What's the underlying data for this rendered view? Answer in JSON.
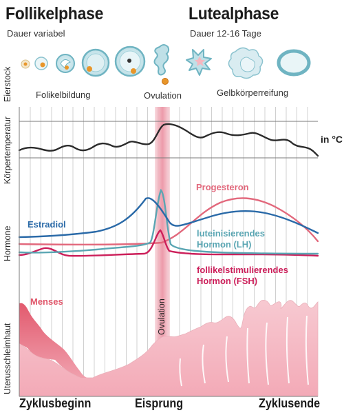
{
  "header": {
    "follicular": {
      "title": "Follikelphase",
      "duration": "Dauer variabel"
    },
    "luteal": {
      "title": "Lutealphase",
      "duration": "Dauer 12-16 Tage"
    }
  },
  "rows": {
    "ovary": "Eierstock",
    "temperature": "Körpertemperatur",
    "hormones": "Hormone",
    "endometrium": "Uterusschleimhaut"
  },
  "stages": {
    "follicle_formation": "Folikelbildung",
    "ovulation": "Ovulation",
    "corpus_luteum": "Gelbkörperreifung"
  },
  "temperature_unit": "in °C",
  "hormone_labels": {
    "estradiol": "Estradiol",
    "progesterone": "Progesteron",
    "lh": "luteinisierendes Hormon (LH)",
    "fsh": "follikelstimulierendes Hormon (FSH)"
  },
  "menses_label": "Menses",
  "ovulation_band_label": "Ovulation",
  "timeline": {
    "start": "Zyklusbeginn",
    "middle": "Eisprung",
    "end": "Zyklusende"
  },
  "colors": {
    "temperature": "#2b2b2b",
    "estradiol": "#2a6aa8",
    "progesterone": "#e2687c",
    "lh": "#5aa6b3",
    "fsh": "#cc1f5a",
    "menses": "#e0566a",
    "endometrium": "#f4c0c8",
    "ovulation_band": "#f2b3bd"
  }
}
